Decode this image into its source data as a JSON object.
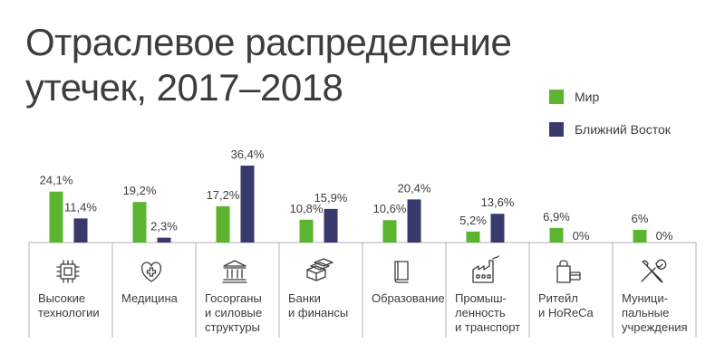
{
  "title_lines": [
    "Отраслевое распределение",
    "утечек, 2017–2018"
  ],
  "colors": {
    "world": "#5cb531",
    "middle_east": "#383a6e",
    "axis": "#b0b0b0",
    "text": "#3c3c3c"
  },
  "chart_data": {
    "type": "bar",
    "title": "Отраслевое распределение утечек, 2017–2018",
    "categories": [
      "Высокие\nтехнологии",
      "Медицина",
      "Госорганы\nи силовые\nструктуры",
      "Банки\nи финансы",
      "Образование",
      "Промыш-\nленность\nи транспорт",
      "Ритейл\nи HoReCa",
      "Муници-\nпальные\nучреждения"
    ],
    "series": [
      {
        "name": "Мир",
        "values": [
          24.1,
          19.2,
          17.2,
          10.8,
          10.6,
          5.2,
          6.9,
          6
        ],
        "labels": [
          "24,1%",
          "19,2%",
          "17,2%",
          "10,8%",
          "10,6%",
          "5,2%",
          "6,9%",
          "6%"
        ]
      },
      {
        "name": "Ближний Восток",
        "values": [
          11.4,
          2.3,
          36.4,
          15.9,
          20.4,
          13.6,
          0,
          0
        ],
        "labels": [
          "11,4%",
          "2,3%",
          "36,4%",
          "15,9%",
          "20,4%",
          "13,6%",
          "0%",
          "0%"
        ]
      }
    ],
    "icons": [
      "chip-icon",
      "heart-cross-icon",
      "government-building-icon",
      "money-stack-icon",
      "book-icon",
      "factory-icon",
      "shopping-bag-card-icon",
      "wrench-screwdriver-icon"
    ],
    "legend_position": "top-right",
    "grid": false,
    "ylim": [
      0,
      36.4
    ]
  }
}
